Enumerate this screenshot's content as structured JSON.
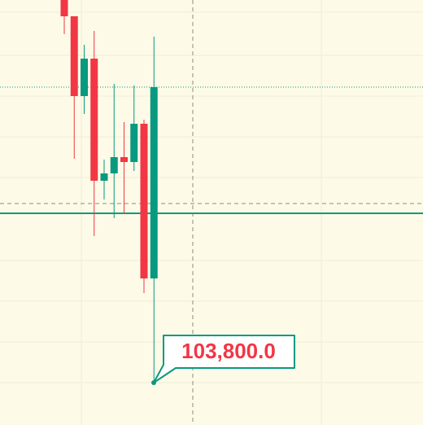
{
  "chart_data": {
    "type": "candlestick",
    "up_color": "#089981",
    "down_color": "#f23645",
    "ylim": [
      103696,
      104740
    ],
    "open": [
      104740,
      104700,
      104504,
      104596,
      104296,
      104314,
      104354,
      104342,
      104436,
      104056
    ],
    "high": [
      104740,
      104700,
      104630,
      104664,
      104348,
      104534,
      104440,
      104530,
      104446,
      104650
    ],
    "low": [
      104656,
      104350,
      104460,
      104160,
      104250,
      104204,
      104214,
      104320,
      104020,
      103800
    ],
    "close": [
      104700,
      104504,
      104596,
      104296,
      104314,
      104354,
      104342,
      104436,
      104056,
      104526
    ],
    "price_line": 104216,
    "last_price_line": 104526,
    "crosshair_price": 104240,
    "annotation": {
      "value": 103800,
      "label": "103,800.0"
    }
  }
}
